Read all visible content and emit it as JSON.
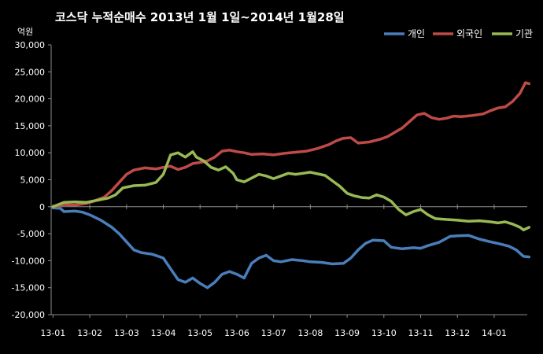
{
  "chart_data": {
    "type": "line",
    "title": "코스닥  누적순매수 2013년 1월 1일~2014년 1월28일",
    "ylabel": "억원",
    "xlabel": "",
    "ylim": [
      -20000,
      30000
    ],
    "yticks": [
      30000,
      25000,
      20000,
      15000,
      10000,
      5000,
      0,
      -5000,
      -10000,
      -15000,
      -20000
    ],
    "ytick_labels": [
      "30,000",
      "25,000",
      "20,000",
      "15,000",
      "10,000",
      "5,000",
      "0",
      "-5,000",
      "-10,000",
      "-15,000",
      "-20,000"
    ],
    "xlim": [
      -0.05,
      12.9
    ],
    "xticks": [
      0,
      1,
      2,
      3,
      4,
      5,
      6,
      7,
      8,
      9,
      10,
      11,
      12
    ],
    "xtick_labels": [
      "13-01",
      "13-02",
      "13-03",
      "13-04",
      "13-05",
      "13-06",
      "13-07",
      "13-08",
      "13-09",
      "13-10",
      "13-11",
      "13-12",
      "14-01"
    ],
    "grid": false,
    "legend_position": "top-right",
    "series": [
      {
        "name": "개인",
        "color": "#4a7ebb",
        "points": [
          [
            0,
            -200
          ],
          [
            0.2,
            -300
          ],
          [
            0.3,
            -900
          ],
          [
            0.6,
            -800
          ],
          [
            0.8,
            -1000
          ],
          [
            1.0,
            -1500
          ],
          [
            1.3,
            -2500
          ],
          [
            1.6,
            -3800
          ],
          [
            1.8,
            -5000
          ],
          [
            2.0,
            -6500
          ],
          [
            2.2,
            -8000
          ],
          [
            2.4,
            -8500
          ],
          [
            2.7,
            -8800
          ],
          [
            3.0,
            -9500
          ],
          [
            3.2,
            -11500
          ],
          [
            3.4,
            -13500
          ],
          [
            3.6,
            -14000
          ],
          [
            3.8,
            -13200
          ],
          [
            4.0,
            -14200
          ],
          [
            4.2,
            -15000
          ],
          [
            4.4,
            -14000
          ],
          [
            4.6,
            -12500
          ],
          [
            4.8,
            -12000
          ],
          [
            5.0,
            -12500
          ],
          [
            5.2,
            -13200
          ],
          [
            5.4,
            -10500
          ],
          [
            5.6,
            -9500
          ],
          [
            5.8,
            -9000
          ],
          [
            6.0,
            -10000
          ],
          [
            6.2,
            -10200
          ],
          [
            6.5,
            -9800
          ],
          [
            6.8,
            -10000
          ],
          [
            7.0,
            -10200
          ],
          [
            7.3,
            -10300
          ],
          [
            7.6,
            -10600
          ],
          [
            7.9,
            -10500
          ],
          [
            8.1,
            -9500
          ],
          [
            8.3,
            -8000
          ],
          [
            8.5,
            -6800
          ],
          [
            8.7,
            -6200
          ],
          [
            9.0,
            -6300
          ],
          [
            9.2,
            -7500
          ],
          [
            9.5,
            -7800
          ],
          [
            9.8,
            -7600
          ],
          [
            10.0,
            -7700
          ],
          [
            10.2,
            -7200
          ],
          [
            10.5,
            -6600
          ],
          [
            10.8,
            -5500
          ],
          [
            11.0,
            -5400
          ],
          [
            11.3,
            -5300
          ],
          [
            11.6,
            -6000
          ],
          [
            11.9,
            -6500
          ],
          [
            12.1,
            -6800
          ],
          [
            12.4,
            -7300
          ],
          [
            12.6,
            -8000
          ],
          [
            12.8,
            -9200
          ],
          [
            12.95,
            -9300
          ]
        ]
      },
      {
        "name": "외국인",
        "color": "#be4b48",
        "points": [
          [
            0,
            0
          ],
          [
            0.3,
            400
          ],
          [
            0.6,
            300
          ],
          [
            0.9,
            600
          ],
          [
            1.1,
            1000
          ],
          [
            1.4,
            1800
          ],
          [
            1.6,
            3000
          ],
          [
            1.8,
            4500
          ],
          [
            2.0,
            6000
          ],
          [
            2.2,
            6800
          ],
          [
            2.5,
            7200
          ],
          [
            2.8,
            7000
          ],
          [
            3.0,
            7300
          ],
          [
            3.2,
            7500
          ],
          [
            3.4,
            6900
          ],
          [
            3.6,
            7300
          ],
          [
            3.8,
            8000
          ],
          [
            4.0,
            8200
          ],
          [
            4.2,
            8500
          ],
          [
            4.4,
            9200
          ],
          [
            4.6,
            10300
          ],
          [
            4.8,
            10500
          ],
          [
            5.0,
            10200
          ],
          [
            5.2,
            10000
          ],
          [
            5.4,
            9700
          ],
          [
            5.7,
            9800
          ],
          [
            6.0,
            9600
          ],
          [
            6.3,
            9900
          ],
          [
            6.6,
            10100
          ],
          [
            6.9,
            10300
          ],
          [
            7.2,
            10800
          ],
          [
            7.5,
            11500
          ],
          [
            7.7,
            12200
          ],
          [
            7.9,
            12700
          ],
          [
            8.1,
            12800
          ],
          [
            8.3,
            11800
          ],
          [
            8.6,
            12000
          ],
          [
            8.9,
            12500
          ],
          [
            9.1,
            13000
          ],
          [
            9.3,
            13800
          ],
          [
            9.5,
            14600
          ],
          [
            9.7,
            15800
          ],
          [
            9.9,
            17000
          ],
          [
            10.1,
            17300
          ],
          [
            10.3,
            16500
          ],
          [
            10.5,
            16200
          ],
          [
            10.7,
            16400
          ],
          [
            10.9,
            16800
          ],
          [
            11.1,
            16700
          ],
          [
            11.4,
            16900
          ],
          [
            11.7,
            17200
          ],
          [
            11.9,
            17800
          ],
          [
            12.1,
            18300
          ],
          [
            12.3,
            18500
          ],
          [
            12.5,
            19500
          ],
          [
            12.7,
            21000
          ],
          [
            12.85,
            23000
          ],
          [
            12.95,
            22800
          ]
        ]
      },
      {
        "name": "기관",
        "color": "#98b954",
        "points": [
          [
            0,
            0
          ],
          [
            0.3,
            800
          ],
          [
            0.6,
            900
          ],
          [
            0.9,
            800
          ],
          [
            1.2,
            1200
          ],
          [
            1.5,
            1600
          ],
          [
            1.7,
            2200
          ],
          [
            1.9,
            3500
          ],
          [
            2.2,
            3900
          ],
          [
            2.5,
            4000
          ],
          [
            2.8,
            4500
          ],
          [
            3.0,
            6000
          ],
          [
            3.2,
            9600
          ],
          [
            3.4,
            10000
          ],
          [
            3.6,
            9200
          ],
          [
            3.8,
            10200
          ],
          [
            3.9,
            9200
          ],
          [
            4.1,
            8500
          ],
          [
            4.3,
            7300
          ],
          [
            4.5,
            6800
          ],
          [
            4.7,
            7400
          ],
          [
            4.9,
            6200
          ],
          [
            5.0,
            5000
          ],
          [
            5.2,
            4600
          ],
          [
            5.4,
            5300
          ],
          [
            5.6,
            6000
          ],
          [
            5.8,
            5700
          ],
          [
            6.0,
            5200
          ],
          [
            6.2,
            5700
          ],
          [
            6.4,
            6200
          ],
          [
            6.6,
            6000
          ],
          [
            6.8,
            6200
          ],
          [
            7.0,
            6400
          ],
          [
            7.2,
            6100
          ],
          [
            7.4,
            5800
          ],
          [
            7.6,
            4800
          ],
          [
            7.8,
            3800
          ],
          [
            8.0,
            2500
          ],
          [
            8.2,
            2000
          ],
          [
            8.4,
            1700
          ],
          [
            8.6,
            1600
          ],
          [
            8.8,
            2200
          ],
          [
            9.0,
            1800
          ],
          [
            9.2,
            1000
          ],
          [
            9.4,
            -500
          ],
          [
            9.6,
            -1500
          ],
          [
            9.8,
            -900
          ],
          [
            10.0,
            -500
          ],
          [
            10.2,
            -1500
          ],
          [
            10.4,
            -2200
          ],
          [
            10.6,
            -2300
          ],
          [
            10.8,
            -2400
          ],
          [
            11.0,
            -2500
          ],
          [
            11.3,
            -2700
          ],
          [
            11.6,
            -2600
          ],
          [
            11.9,
            -2800
          ],
          [
            12.1,
            -3000
          ],
          [
            12.3,
            -2800
          ],
          [
            12.5,
            -3200
          ],
          [
            12.7,
            -3800
          ],
          [
            12.8,
            -4300
          ],
          [
            12.95,
            -3800
          ]
        ]
      }
    ]
  }
}
